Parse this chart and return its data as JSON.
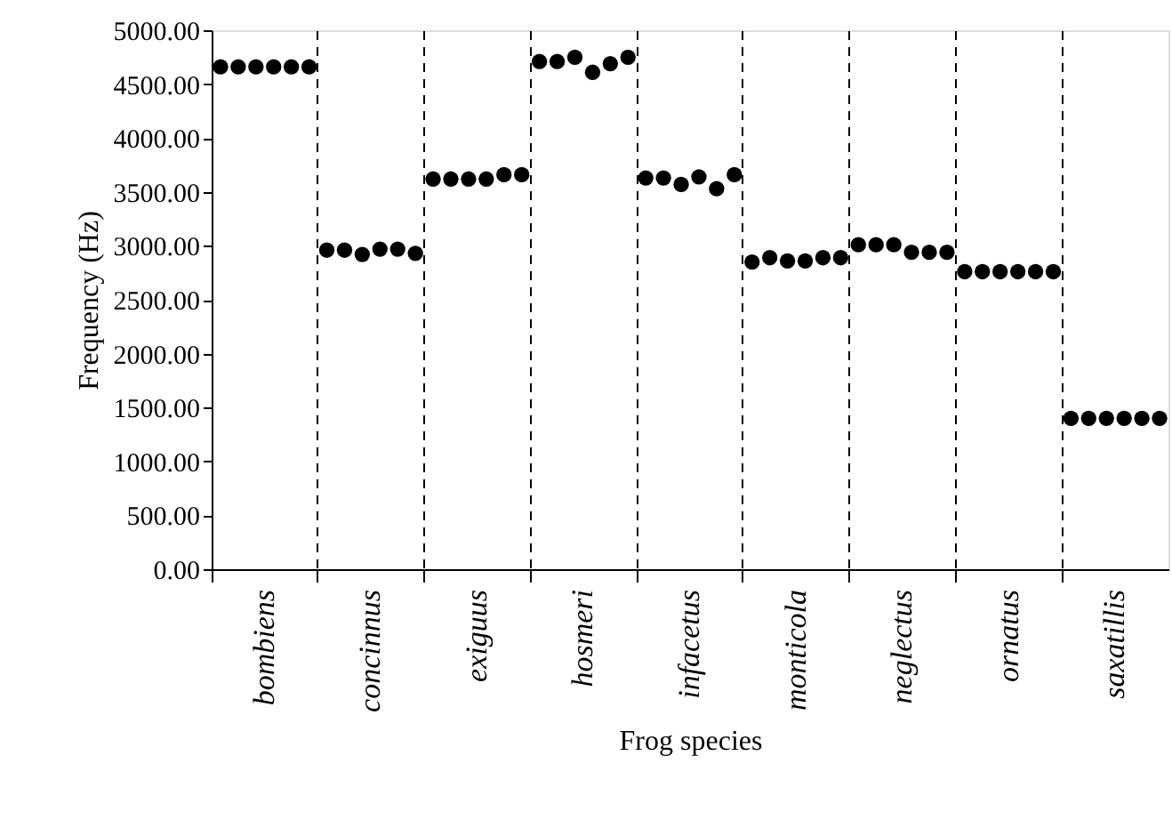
{
  "chart_data": {
    "type": "scatter",
    "xlabel": "Frog species",
    "ylabel": "Frequency (Hz)",
    "categories": [
      "bombiens",
      "concinnus",
      "exiguus",
      "hosmeri",
      "infacetus",
      "monticola",
      "neglectus",
      "ornatus",
      "saxatillis"
    ],
    "series": [
      {
        "color": "#000000",
        "values": [
          4660,
          2960,
          3620,
          4710,
          3630,
          2850,
          3010,
          2760,
          1400
        ]
      },
      {
        "color": "#000000",
        "values": [
          4660,
          2960,
          3620,
          4710,
          3630,
          2890,
          3010,
          2760,
          1400
        ]
      },
      {
        "color": "#000000",
        "values": [
          4660,
          2920,
          3620,
          4750,
          3570,
          2860,
          3010,
          2760,
          1400
        ]
      },
      {
        "color": "#000000",
        "values": [
          4660,
          2970,
          3620,
          4610,
          3640,
          2860,
          2940,
          2760,
          1400
        ]
      },
      {
        "color": "#000000",
        "values": [
          4660,
          2970,
          3660,
          4690,
          3530,
          2890,
          2940,
          2760,
          1400
        ]
      },
      {
        "color": "#000000",
        "values": [
          4660,
          2930,
          3660,
          4750,
          3660,
          2890,
          2940,
          2760,
          1400
        ]
      }
    ],
    "ylim": [
      0,
      5000
    ],
    "yticks": [
      {
        "value": 0,
        "label": "0.00"
      },
      {
        "value": 500,
        "label": "500.00"
      },
      {
        "value": 1000,
        "label": "1000.00"
      },
      {
        "value": 1500,
        "label": "1500.00"
      },
      {
        "value": 2000,
        "label": "2000.00"
      },
      {
        "value": 2500,
        "label": "2500.00"
      },
      {
        "value": 3000,
        "label": "3000.00"
      },
      {
        "value": 3500,
        "label": "3500.00"
      },
      {
        "value": 4000,
        "label": "4000.00"
      },
      {
        "value": 4500,
        "label": "4500.00"
      },
      {
        "value": 5000,
        "label": "5000.00"
      }
    ],
    "marker": "circle",
    "grid": "x",
    "line_style": "dashed"
  }
}
